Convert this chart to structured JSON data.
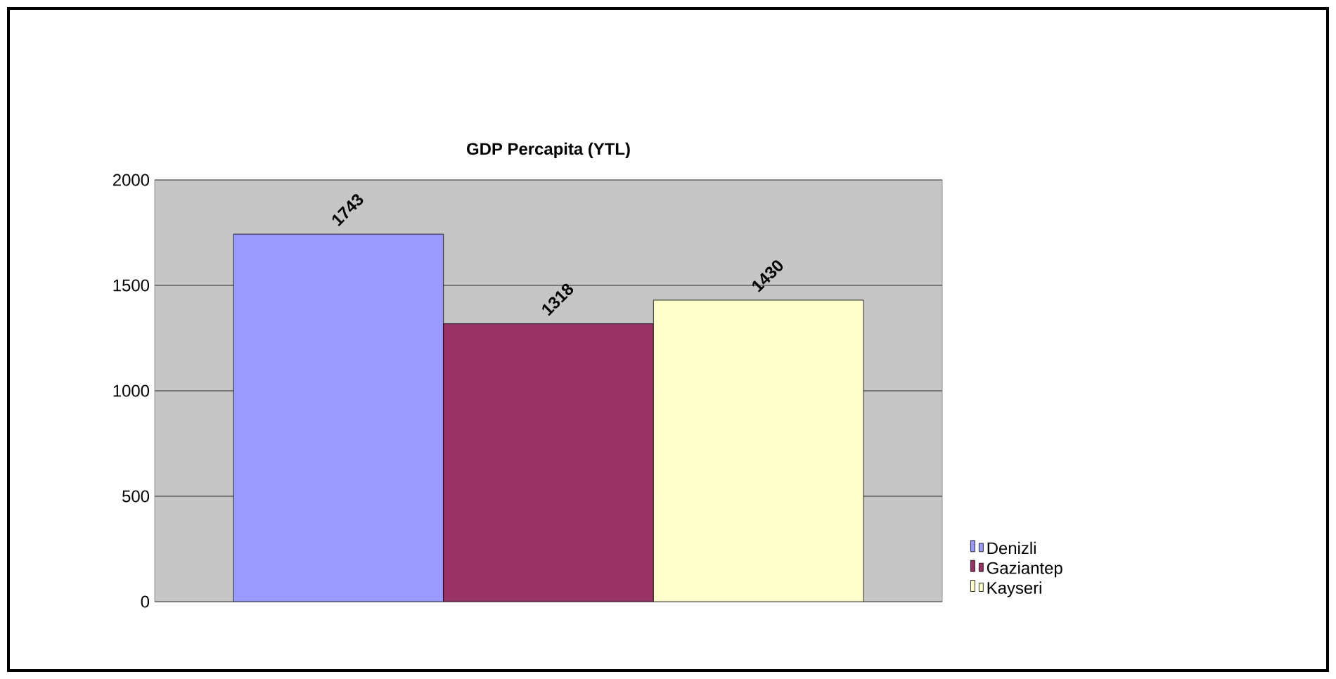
{
  "chart_data": {
    "type": "bar",
    "title": "GDP Percapita (YTL)",
    "categories": [
      null
    ],
    "series": [
      {
        "name": "Denizli",
        "color": "#9999ff",
        "values": [
          1743
        ]
      },
      {
        "name": "Gaziantep",
        "color": "#993366",
        "values": [
          1318
        ]
      },
      {
        "name": "Kayseri",
        "color": "#ffffcc",
        "values": [
          1430
        ]
      }
    ],
    "ylim": [
      0,
      2000
    ],
    "yticks": [
      0,
      500,
      1000,
      1500,
      2000
    ],
    "grid": "y",
    "legend": "right",
    "data_labels": true
  }
}
